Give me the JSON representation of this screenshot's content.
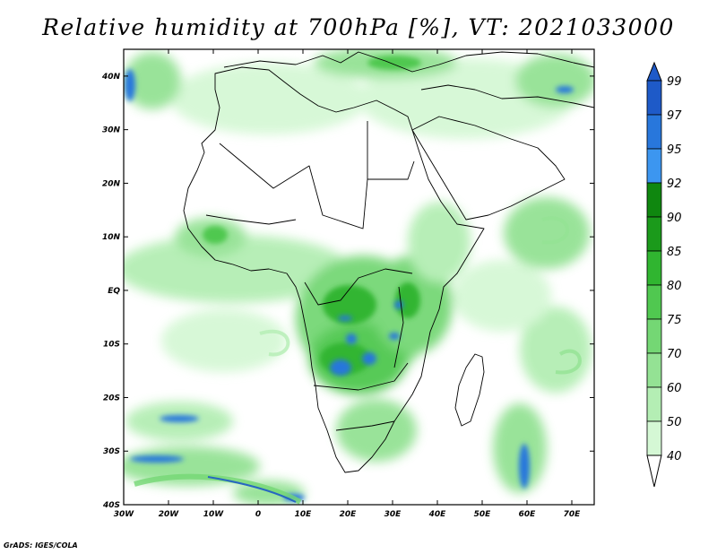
{
  "title": "Relative humidity at 700hPa [%], VT: 2021033000",
  "credit": "GrADS: IGES/COLA",
  "map": {
    "lon_range": [
      -30,
      75
    ],
    "lat_range": [
      -40,
      45
    ],
    "lon_ticks": [
      {
        "value": -30,
        "label": "30W"
      },
      {
        "value": -20,
        "label": "20W"
      },
      {
        "value": -10,
        "label": "10W"
      },
      {
        "value": 0,
        "label": "0"
      },
      {
        "value": 10,
        "label": "10E"
      },
      {
        "value": 20,
        "label": "20E"
      },
      {
        "value": 30,
        "label": "30E"
      },
      {
        "value": 40,
        "label": "40E"
      },
      {
        "value": 50,
        "label": "50E"
      },
      {
        "value": 60,
        "label": "60E"
      },
      {
        "value": 70,
        "label": "70E"
      }
    ],
    "lat_ticks": [
      {
        "value": 40,
        "label": "40N"
      },
      {
        "value": 30,
        "label": "30N"
      },
      {
        "value": 20,
        "label": "20N"
      },
      {
        "value": 10,
        "label": "10N"
      },
      {
        "value": 0,
        "label": "EQ"
      },
      {
        "value": -10,
        "label": "10S"
      },
      {
        "value": -20,
        "label": "20S"
      },
      {
        "value": -30,
        "label": "30S"
      },
      {
        "value": -40,
        "label": "40S"
      }
    ]
  },
  "colorbar": {
    "labels": [
      "40",
      "50",
      "60",
      "70",
      "75",
      "80",
      "85",
      "90",
      "92",
      "95",
      "97",
      "99"
    ],
    "colors": [
      "#f0fff0",
      "#d5f8d5",
      "#b4eeb4",
      "#94e294",
      "#74d774",
      "#50c850",
      "#30b530",
      "#1b9a1b",
      "#0f870f",
      "#3c96f0",
      "#2877dc",
      "#1e5ac8"
    ],
    "low_arrow_color": "#ffffff",
    "high_arrow_color": "#1e5ac8"
  },
  "colors": {
    "coast": "#000000",
    "background": "#ffffff"
  }
}
